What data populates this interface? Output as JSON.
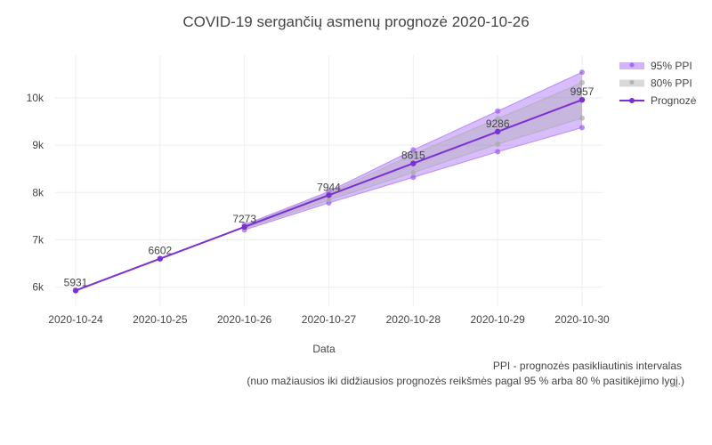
{
  "chart_data": {
    "type": "line",
    "title": "COVID-19 sergančių asmenų prognozė 2020-10-26",
    "xlabel": "Data",
    "ylabel": "",
    "x": [
      "2020-10-24",
      "2020-10-25",
      "2020-10-26",
      "2020-10-27",
      "2020-10-28",
      "2020-10-29",
      "2020-10-30"
    ],
    "ylim": [
      5600,
      10900
    ],
    "y_ticks": [
      6000,
      7000,
      8000,
      9000,
      10000
    ],
    "y_tick_labels": [
      "6k",
      "7k",
      "8k",
      "9k",
      "10k"
    ],
    "grid": true,
    "legend_position": "top-right",
    "series": [
      {
        "name": "95% PPI",
        "type": "band",
        "color": "#9b59f5",
        "x": [
          "2020-10-26",
          "2020-10-27",
          "2020-10-28",
          "2020-10-29",
          "2020-10-30"
        ],
        "upper": [
          7320,
          8020,
          8900,
          9720,
          10540
        ],
        "lower": [
          7210,
          7780,
          8320,
          8860,
          9370
        ]
      },
      {
        "name": "80% PPI",
        "type": "band",
        "color": "#aaaaaa",
        "x": [
          "2020-10-26",
          "2020-10-27",
          "2020-10-28",
          "2020-10-29",
          "2020-10-30"
        ],
        "upper": [
          7300,
          7980,
          8810,
          9560,
          10320
        ],
        "lower": [
          7240,
          7840,
          8420,
          9020,
          9570
        ]
      },
      {
        "name": "Prognozė",
        "type": "line",
        "color": "#7b2fd6",
        "values": [
          5931,
          6602,
          7273,
          7944,
          8615,
          9286,
          9957
        ],
        "data_labels": [
          "5931",
          "6602",
          "7273",
          "7944",
          "8615",
          "9286",
          "9957"
        ]
      }
    ]
  },
  "notes": {
    "line1": "PPI - prognozės pasikliautinis intervalas",
    "line2": "(nuo mažiausios iki didžiausios prognozės reikšmės pagal 95 % arba 80 % pasitikėjimo lygį.)"
  }
}
